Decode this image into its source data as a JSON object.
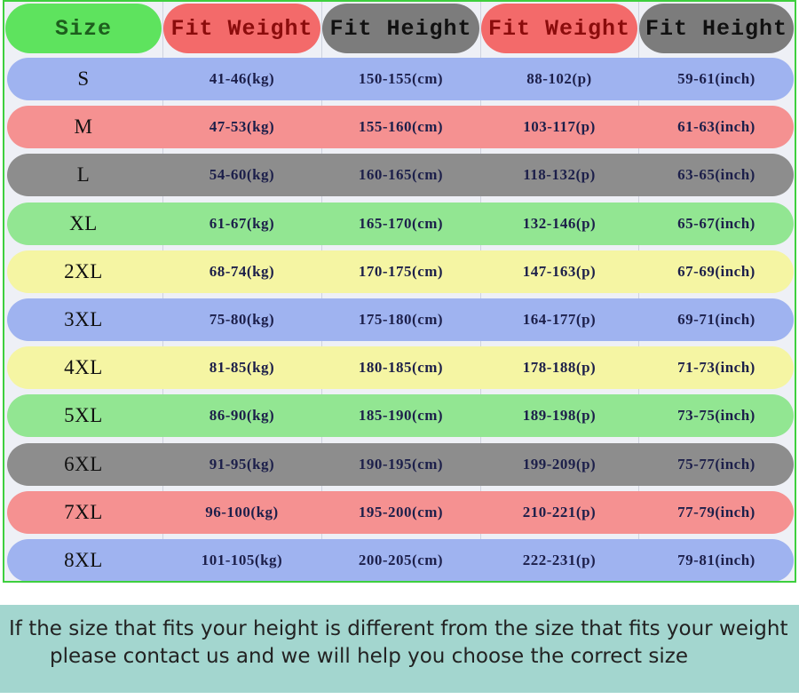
{
  "table": {
    "header": [
      "Size",
      "Fit Weight",
      "Fit Height",
      "Fit Weight",
      "Fit Height"
    ],
    "rows": [
      [
        "S",
        "41-46(kg)",
        "150-155(cm)",
        "88-102(p)",
        "59-61(inch)"
      ],
      [
        "M",
        "47-53(kg)",
        "155-160(cm)",
        "103-117(p)",
        "61-63(inch)"
      ],
      [
        "L",
        "54-60(kg)",
        "160-165(cm)",
        "118-132(p)",
        "63-65(inch)"
      ],
      [
        "XL",
        "61-67(kg)",
        "165-170(cm)",
        "132-146(p)",
        "65-67(inch)"
      ],
      [
        "2XL",
        "68-74(kg)",
        "170-175(cm)",
        "147-163(p)",
        "67-69(inch)"
      ],
      [
        "3XL",
        "75-80(kg)",
        "175-180(cm)",
        "164-177(p)",
        "69-71(inch)"
      ],
      [
        "4XL",
        "81-85(kg)",
        "180-185(cm)",
        "178-188(p)",
        "71-73(inch)"
      ],
      [
        "5XL",
        "86-90(kg)",
        "185-190(cm)",
        "189-198(p)",
        "73-75(inch)"
      ],
      [
        "6XL",
        "91-95(kg)",
        "190-195(cm)",
        "199-209(p)",
        "75-77(inch)"
      ],
      [
        "7XL",
        "96-100(kg)",
        "195-200(cm)",
        "210-221(p)",
        "77-79(inch)"
      ],
      [
        "8XL",
        "101-105(kg)",
        "200-205(cm)",
        "222-231(p)",
        "79-81(inch)"
      ]
    ]
  },
  "note": [
    "If the size that fits your height is different from the size that fits your weight",
    "please contact us and we will help you choose the correct size"
  ]
}
